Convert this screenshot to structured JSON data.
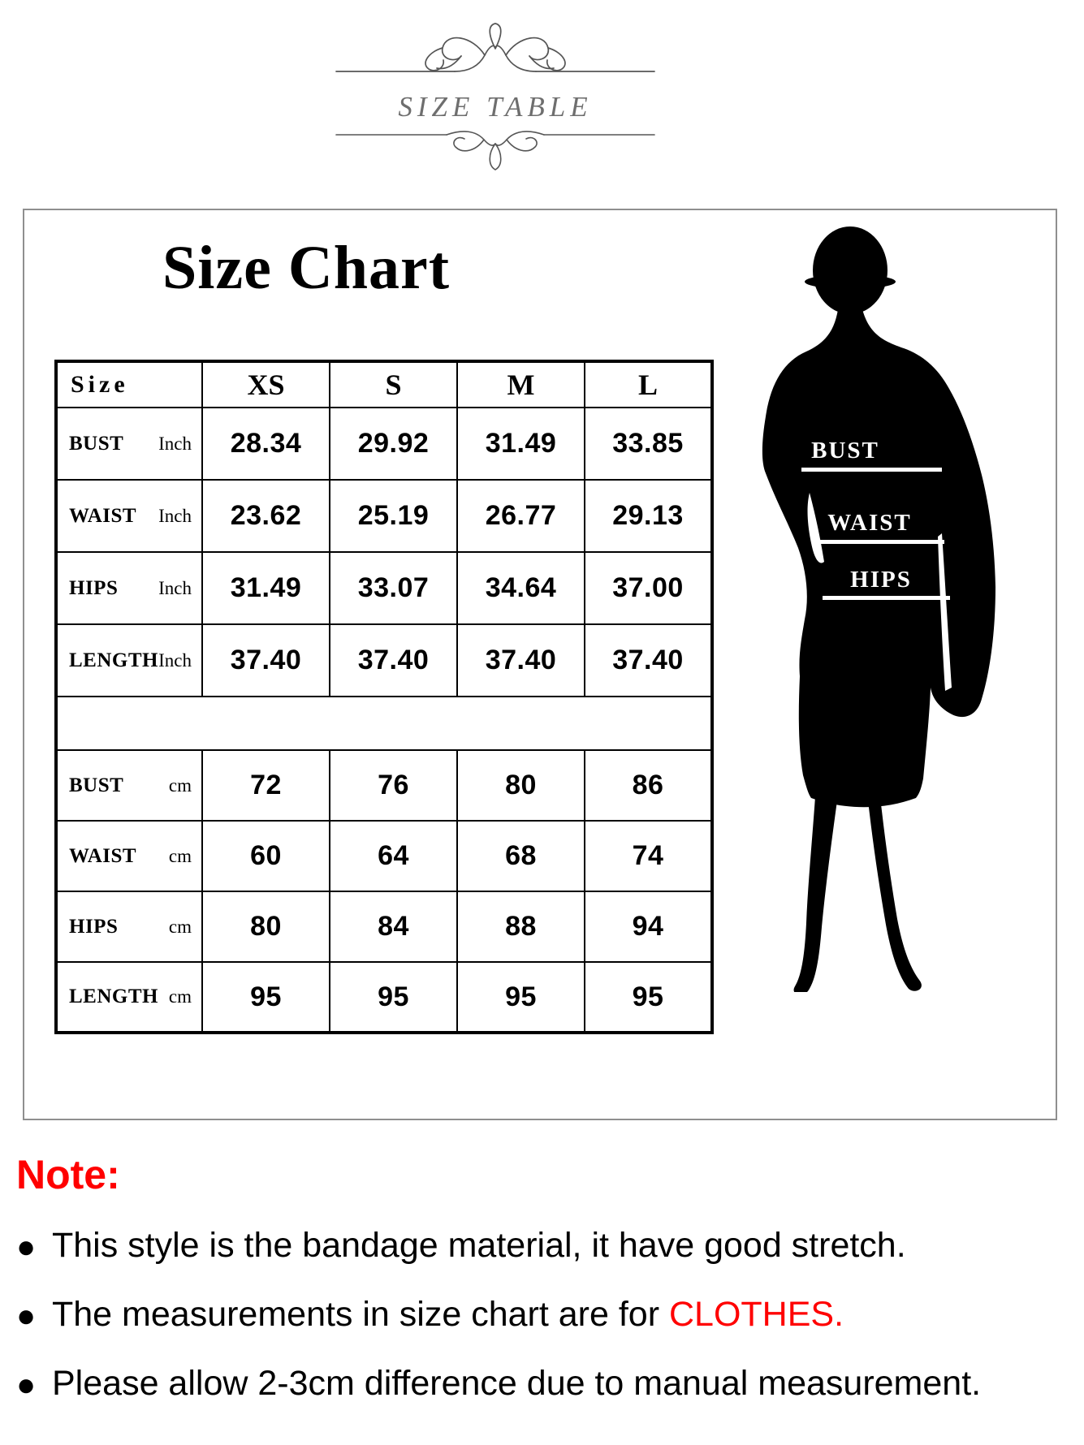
{
  "ornament": {
    "title": "SIZE TABLE"
  },
  "panel": {
    "title": "Size Chart",
    "table": {
      "header": [
        "Size",
        "XS",
        "S",
        "M",
        "L"
      ],
      "inch_rows": [
        {
          "label": "BUST",
          "unit": "Inch",
          "values": [
            "28.34",
            "29.92",
            "31.49",
            "33.85"
          ]
        },
        {
          "label": "WAIST",
          "unit": "Inch",
          "values": [
            "23.62",
            "25.19",
            "26.77",
            "29.13"
          ]
        },
        {
          "label": "HIPS",
          "unit": "Inch",
          "values": [
            "31.49",
            "33.07",
            "34.64",
            "37.00"
          ]
        },
        {
          "label": "LENGTH",
          "unit": "Inch",
          "values": [
            "37.40",
            "37.40",
            "37.40",
            "37.40"
          ]
        }
      ],
      "cm_rows": [
        {
          "label": "BUST",
          "unit": "cm",
          "values": [
            "72",
            "76",
            "80",
            "86"
          ]
        },
        {
          "label": "WAIST",
          "unit": "cm",
          "values": [
            "60",
            "64",
            "68",
            "74"
          ]
        },
        {
          "label": "HIPS",
          "unit": "cm",
          "values": [
            "80",
            "84",
            "88",
            "94"
          ]
        },
        {
          "label": "LENGTH",
          "unit": "cm",
          "values": [
            "95",
            "95",
            "95",
            "95"
          ]
        }
      ]
    },
    "figure": {
      "labels": {
        "bust": "BUST",
        "waist": "WAIST",
        "hips": "HIPS"
      }
    }
  },
  "note": {
    "heading": "Note:",
    "bullets": [
      {
        "segments": [
          {
            "text": "This style is the bandage material, it have good stretch.",
            "color": "#000000"
          }
        ]
      },
      {
        "segments": [
          {
            "text": "The measurements in size chart are for ",
            "color": "#000000"
          },
          {
            "text": "CLOTHES.",
            "color": "#ff0000"
          }
        ]
      },
      {
        "segments": [
          {
            "text": "Please allow 2-3cm difference due to manual measurement.",
            "color": "#000000"
          }
        ]
      }
    ]
  },
  "colors": {
    "accent_red": "#ff0000",
    "panel_border_gray": "#8f8f8f",
    "ornament_gray": "#6e6e6e",
    "silhouette_black": "#000000"
  }
}
